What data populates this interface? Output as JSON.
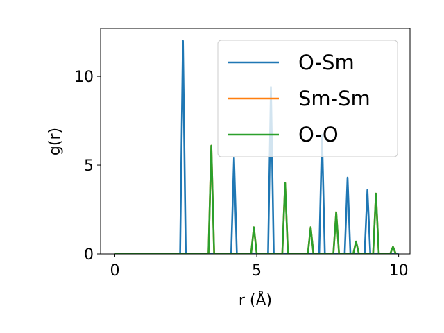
{
  "chart_data": {
    "type": "line",
    "xlabel": "r (Å)",
    "ylabel": "g(r)",
    "xlim": [
      -0.5,
      10.4
    ],
    "ylim": [
      0,
      12.7
    ],
    "xticks": [
      0,
      5,
      10
    ],
    "yticks": [
      0,
      5,
      10
    ],
    "grid": false,
    "legend_position": "top-right",
    "series": [
      {
        "name": "O-Sm",
        "color": "#1f77b4",
        "x": [
          0,
          2.3,
          2.4,
          2.5,
          4.1,
          4.2,
          4.3,
          5.4,
          5.5,
          5.6,
          7.2,
          7.3,
          7.4,
          8.1,
          8.2,
          8.3,
          8.8,
          8.9,
          9.0,
          10
        ],
        "y": [
          0,
          0,
          12.0,
          0,
          0,
          5.4,
          0,
          0,
          9.4,
          0,
          0,
          6.7,
          0,
          0,
          4.3,
          0,
          0,
          3.6,
          0,
          0
        ]
      },
      {
        "name": "Sm-Sm",
        "color": "#ff7f0e",
        "x": [
          0,
          3.3,
          3.4,
          3.5,
          4.8,
          4.9,
          5.0,
          5.9,
          6.0,
          6.1,
          6.8,
          6.9,
          7.0,
          7.7,
          7.8,
          7.9,
          8.4,
          8.5,
          8.6,
          9.1,
          9.2,
          9.3,
          9.7,
          9.8,
          9.9
        ],
        "y": [
          0,
          0,
          6.1,
          0,
          0,
          1.5,
          0,
          0,
          4.0,
          0,
          0,
          1.5,
          0,
          0,
          2.35,
          0,
          0,
          0.7,
          0,
          0,
          3.4,
          0,
          0,
          0.4,
          0
        ]
      },
      {
        "name": "O-O",
        "color": "#2ca02c",
        "x": [
          0,
          3.3,
          3.4,
          3.5,
          4.8,
          4.9,
          5.0,
          5.9,
          6.0,
          6.1,
          6.8,
          6.9,
          7.0,
          7.7,
          7.8,
          7.9,
          8.4,
          8.5,
          8.6,
          9.1,
          9.2,
          9.3,
          9.7,
          9.8,
          9.9
        ],
        "y": [
          0,
          0,
          6.1,
          0,
          0,
          1.5,
          0,
          0,
          4.0,
          0,
          0,
          1.5,
          0,
          0,
          2.35,
          0,
          0,
          0.7,
          0,
          0,
          3.4,
          0,
          0,
          0.4,
          0
        ]
      }
    ]
  }
}
